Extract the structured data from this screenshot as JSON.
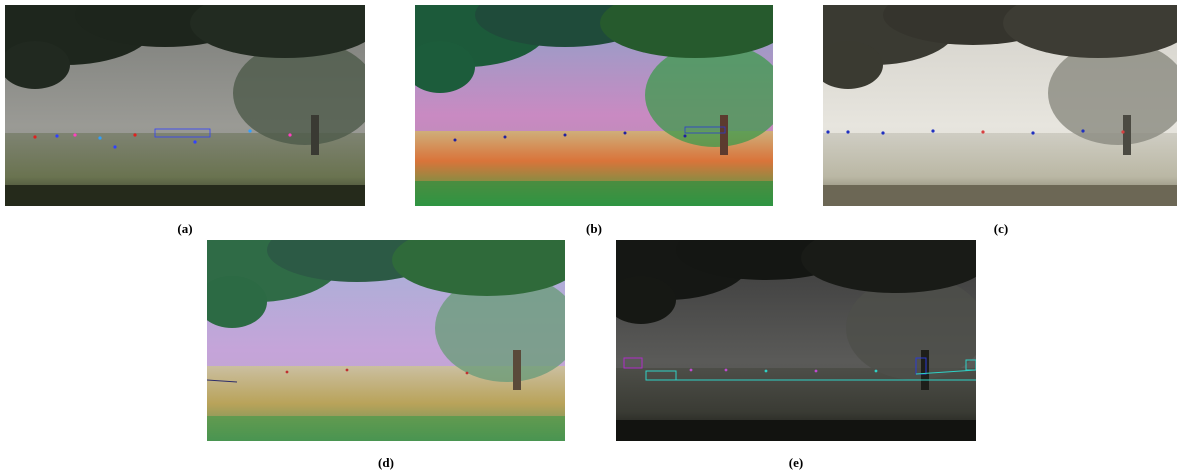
{
  "figure": {
    "panels": [
      {
        "id": "a",
        "caption": "(a)",
        "description_icon": "foggy-field-tree-photo-desaturated-with-colored-keypoints"
      },
      {
        "id": "b",
        "caption": "(b)",
        "description_icon": "foggy-field-tree-photo-false-color-with-keypoints"
      },
      {
        "id": "c",
        "caption": "(c)",
        "description_icon": "foggy-field-tree-photo-bright-grayscale-with-blue-keypoints"
      },
      {
        "id": "d",
        "caption": "(d)",
        "description_icon": "foggy-field-tree-photo-pastel-false-color"
      },
      {
        "id": "e",
        "caption": "(e)",
        "description_icon": "foggy-field-tree-photo-dark-grayscale-with-cyan-boxes"
      }
    ],
    "colors": {
      "tree_dark": "#1f2a1f",
      "fog_gray": "#8a8a84",
      "field_green": "#56613f",
      "false_pink": "#c98ac2",
      "false_orange": "#d9743a",
      "false_green": "#2ea84c",
      "cyan_box": "#2fd1c6",
      "magenta_box": "#b02cc9",
      "blue_box": "#2b3bd1"
    }
  }
}
